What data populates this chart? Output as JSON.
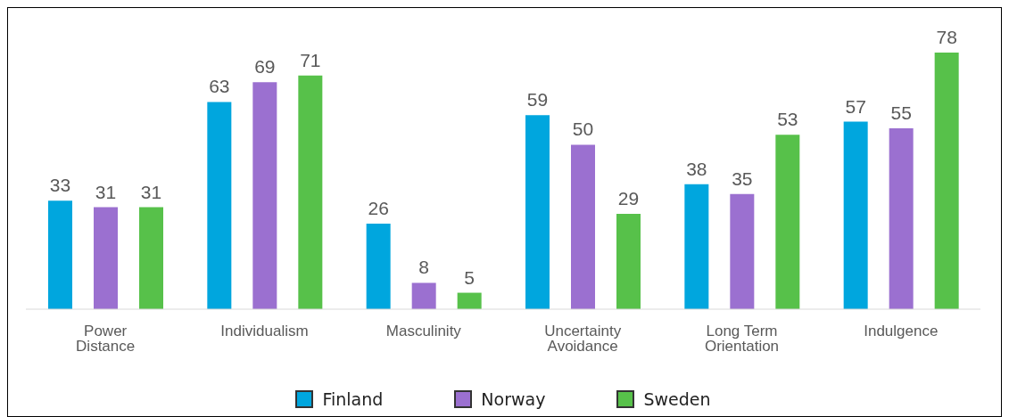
{
  "chart_data": {
    "type": "bar",
    "categories": [
      "Power Distance",
      "Individualism",
      "Masculinity",
      "Uncertainty Avoidance",
      "Long Term Orientation",
      "Indulgence"
    ],
    "series": [
      {
        "name": "Finland",
        "color": "#00a6de",
        "values": [
          33,
          63,
          26,
          59,
          38,
          57
        ]
      },
      {
        "name": "Norway",
        "color": "#9b70d0",
        "values": [
          31,
          69,
          8,
          50,
          35,
          55
        ]
      },
      {
        "name": "Sweden",
        "color": "#57c14a",
        "values": [
          31,
          71,
          5,
          29,
          53,
          78
        ]
      }
    ],
    "data_labels": true,
    "legend": "bottom",
    "grid": false
  }
}
